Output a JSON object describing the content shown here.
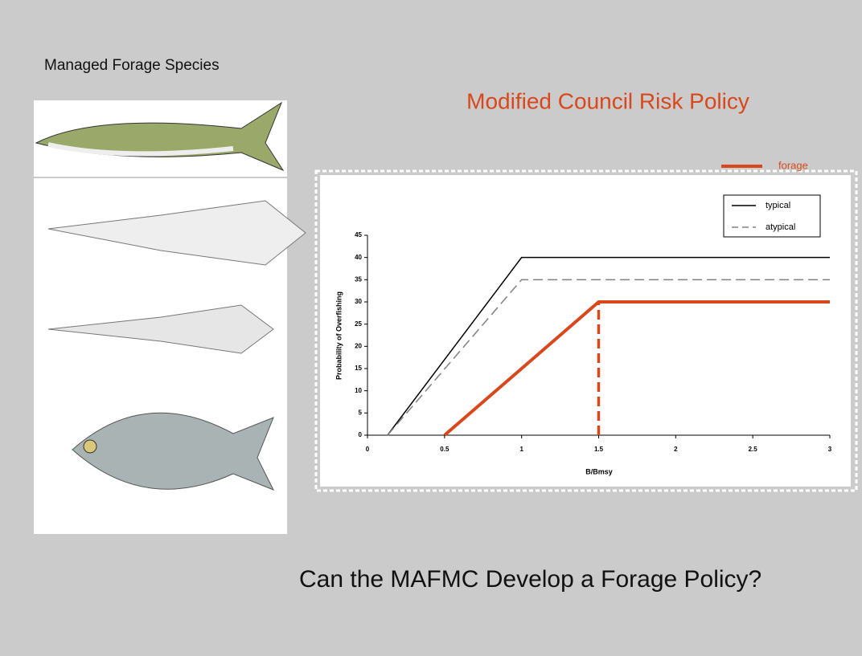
{
  "slide": {
    "left_heading": "Managed Forage Species",
    "bottom_question": "Can the MAFMC Develop a Forage Policy?"
  },
  "chart_data": {
    "type": "line",
    "title": "Modified Council Risk Policy",
    "x_label": "B/Bmsy",
    "y_label": "Probability of Overfishing",
    "xlim": [
      0,
      3
    ],
    "xticks": [
      0,
      0.5,
      1,
      1.5,
      2,
      2.5,
      3
    ],
    "ylim": [
      0,
      45
    ],
    "yticks": [
      0,
      5,
      10,
      15,
      20,
      25,
      30,
      35,
      40,
      45
    ],
    "series": [
      {
        "name": "typical",
        "color": "#000000",
        "dashed": false,
        "line_width": 1.5,
        "x": [
          0.13,
          1,
          3
        ],
        "values": [
          0,
          40,
          40
        ]
      },
      {
        "name": "atypical",
        "color": "#808080",
        "dashed": true,
        "line_width": 1.5,
        "x": [
          0.13,
          1,
          3
        ],
        "values": [
          0,
          35,
          35
        ]
      },
      {
        "name": "forage",
        "color": "#d9481c",
        "dashed": false,
        "line_width": 4,
        "x": [
          0.5,
          1.5,
          3
        ],
        "values": [
          0,
          30,
          30
        ]
      },
      {
        "color": "#d9481c",
        "dashed": true,
        "line_width": 3.5,
        "x": [
          1.5,
          1.5
        ],
        "values": [
          0,
          30
        ]
      }
    ]
  }
}
